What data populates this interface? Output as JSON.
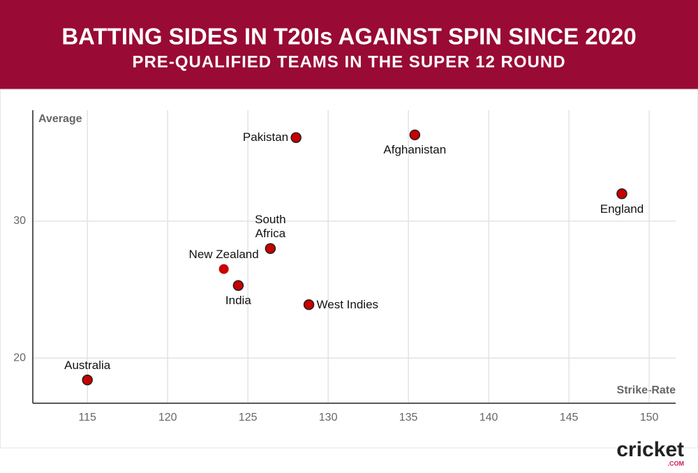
{
  "chart_data": {
    "type": "scatter",
    "title": "BATTING SIDES IN T20Is AGAINST SPIN SINCE 2020",
    "subtitle": "PRE-QUALIFIED TEAMS IN THE SUPER 12 ROUND",
    "x_label": "Strike-Rate",
    "y_label": "Average",
    "labels": [
      "Pakistan",
      "Afghanistan",
      "England",
      "South Africa",
      "New Zealand",
      "India",
      "West Indies",
      "Australia"
    ],
    "x": [
      128.0,
      135.4,
      148.3,
      126.4,
      123.5,
      124.4,
      128.8,
      115.0
    ],
    "values": [
      36.1,
      36.3,
      32.0,
      28.0,
      26.5,
      25.3,
      23.9,
      18.4
    ],
    "color": "#c80000",
    "xlim": [
      111.6,
      151.65
    ],
    "ylim": [
      16.7,
      38.1
    ],
    "xticks": [
      115,
      120,
      125,
      130,
      135,
      140,
      145,
      150
    ],
    "yticks": [
      20,
      30
    ],
    "grid": true,
    "logo": {
      "text": "cricket",
      "suffix": ".COM"
    }
  }
}
